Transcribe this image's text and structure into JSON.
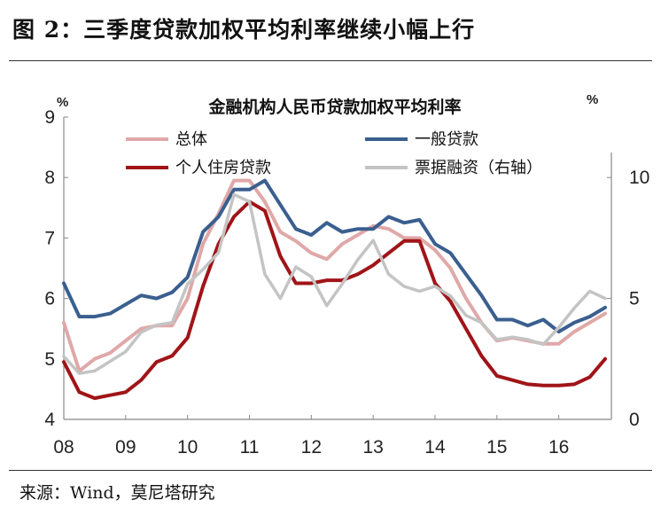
{
  "figure": {
    "title": "图 2：三季度贷款加权平均利率继续小幅上行",
    "source": "来源：Wind，莫尼塔研究"
  },
  "chart_data": {
    "type": "line",
    "title": "金融机构人民币贷款加权平均利率",
    "left_axis": {
      "unit": "%",
      "ylim": [
        4,
        9
      ],
      "ticks": [
        "4",
        "5",
        "6",
        "7",
        "8",
        "9"
      ]
    },
    "right_axis": {
      "unit": "%",
      "ylim": [
        0,
        12.5
      ],
      "ticks": [
        "0",
        "5",
        "10"
      ]
    },
    "x_ticks": [
      "08",
      "09",
      "10",
      "11",
      "12",
      "13",
      "14",
      "15",
      "16"
    ],
    "x_range": [
      2008.0,
      2016.85
    ],
    "grid": false,
    "legend_position": "top",
    "series": [
      {
        "name": "总体",
        "axis": "left",
        "color": "#e0a8a8",
        "x": [
          2008.0,
          2008.25,
          2008.5,
          2008.75,
          2009.0,
          2009.25,
          2009.5,
          2009.75,
          2010.0,
          2010.25,
          2010.5,
          2010.75,
          2011.0,
          2011.25,
          2011.5,
          2011.75,
          2012.0,
          2012.25,
          2012.5,
          2012.75,
          2013.0,
          2013.25,
          2013.5,
          2013.75,
          2014.0,
          2014.25,
          2014.5,
          2014.75,
          2015.0,
          2015.25,
          2015.5,
          2015.75,
          2016.0,
          2016.25,
          2016.5,
          2016.75
        ],
        "values": [
          5.6,
          4.8,
          5.0,
          5.1,
          5.3,
          5.5,
          5.55,
          5.55,
          6.0,
          6.9,
          7.4,
          7.95,
          7.95,
          7.6,
          7.1,
          6.95,
          6.75,
          6.65,
          6.9,
          7.05,
          7.2,
          7.15,
          7.0,
          7.0,
          6.8,
          6.5,
          6.0,
          5.6,
          5.3,
          5.35,
          5.3,
          5.25,
          5.25,
          5.45,
          5.6,
          5.75
        ]
      },
      {
        "name": "一般贷款",
        "axis": "left",
        "color": "#3a5f8f",
        "x": [
          2008.0,
          2008.25,
          2008.5,
          2008.75,
          2009.0,
          2009.25,
          2009.5,
          2009.75,
          2010.0,
          2010.25,
          2010.5,
          2010.75,
          2011.0,
          2011.25,
          2011.5,
          2011.75,
          2012.0,
          2012.25,
          2012.5,
          2012.75,
          2013.0,
          2013.25,
          2013.5,
          2013.75,
          2014.0,
          2014.25,
          2014.5,
          2014.75,
          2015.0,
          2015.25,
          2015.5,
          2015.75,
          2016.0,
          2016.25,
          2016.5,
          2016.75
        ],
        "values": [
          6.25,
          5.7,
          5.7,
          5.75,
          5.9,
          6.05,
          6.0,
          6.1,
          6.35,
          7.1,
          7.35,
          7.8,
          7.8,
          7.95,
          7.55,
          7.15,
          7.05,
          7.25,
          7.1,
          7.15,
          7.15,
          7.35,
          7.25,
          7.3,
          6.9,
          6.75,
          6.4,
          6.05,
          5.65,
          5.65,
          5.55,
          5.65,
          5.45,
          5.6,
          5.7,
          5.85
        ]
      },
      {
        "name": "个人住房贷款",
        "axis": "left",
        "color": "#a01418",
        "x": [
          2008.0,
          2008.25,
          2008.5,
          2008.75,
          2009.0,
          2009.25,
          2009.5,
          2009.75,
          2010.0,
          2010.25,
          2010.5,
          2010.75,
          2011.0,
          2011.25,
          2011.5,
          2011.75,
          2012.0,
          2012.25,
          2012.5,
          2012.75,
          2013.0,
          2013.25,
          2013.5,
          2013.75,
          2014.0,
          2014.25,
          2014.5,
          2014.75,
          2015.0,
          2015.25,
          2015.5,
          2015.75,
          2016.0,
          2016.25,
          2016.5,
          2016.75
        ],
        "values": [
          4.95,
          4.45,
          4.35,
          4.4,
          4.45,
          4.65,
          4.95,
          5.05,
          5.35,
          6.2,
          6.9,
          7.35,
          7.6,
          7.45,
          6.7,
          6.25,
          6.25,
          6.3,
          6.3,
          6.4,
          6.55,
          6.75,
          6.95,
          6.95,
          6.25,
          5.95,
          5.5,
          5.05,
          4.72,
          4.65,
          4.58,
          4.56,
          4.56,
          4.58,
          4.7,
          5.0
        ]
      },
      {
        "name": "票据融资（右轴）",
        "axis": "right",
        "color": "#c4c4c4",
        "x": [
          2008.0,
          2008.25,
          2008.5,
          2008.75,
          2009.0,
          2009.25,
          2009.5,
          2009.75,
          2010.0,
          2010.25,
          2010.5,
          2010.75,
          2011.0,
          2011.25,
          2011.5,
          2011.75,
          2012.0,
          2012.25,
          2012.5,
          2012.75,
          2013.0,
          2013.25,
          2013.5,
          2013.75,
          2014.0,
          2014.25,
          2014.5,
          2014.75,
          2015.0,
          2015.25,
          2015.5,
          2015.75,
          2016.0,
          2016.25,
          2016.5,
          2016.75
        ],
        "values": [
          2.6,
          1.9,
          2.0,
          2.4,
          2.8,
          3.6,
          3.9,
          4.0,
          5.6,
          6.2,
          6.9,
          9.3,
          9.0,
          6.0,
          5.0,
          6.3,
          5.9,
          4.7,
          5.6,
          6.6,
          7.4,
          6.0,
          5.5,
          5.3,
          5.5,
          5.1,
          4.3,
          4.0,
          3.3,
          3.4,
          3.3,
          3.1,
          3.8,
          4.6,
          5.3,
          5.0
        ]
      }
    ]
  }
}
